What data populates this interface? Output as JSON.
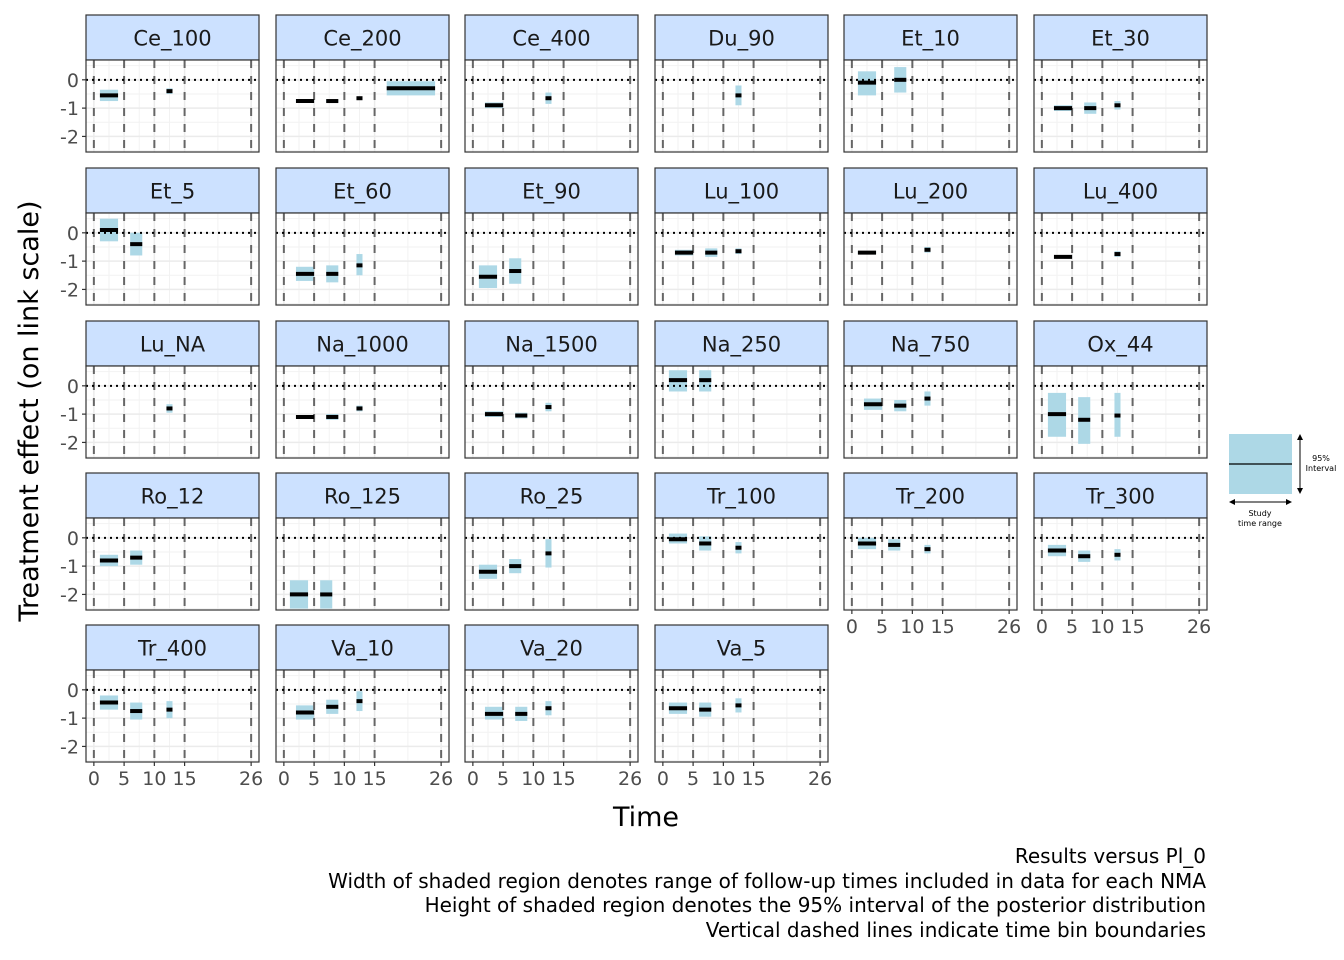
{
  "chart_data": {
    "type": "faceted-interval",
    "xlabel": "Time",
    "ylabel": "Treatment effect (on link scale)",
    "x_ticks": [
      0,
      5,
      10,
      15,
      26
    ],
    "x_tick_labels": [
      "0",
      "5",
      "10",
      "15",
      "26"
    ],
    "xlim": [
      -1.3,
      27.3
    ],
    "bin_boundaries": [
      0,
      5,
      10,
      15,
      26
    ],
    "y_ticks": [
      0,
      -1,
      -2
    ],
    "y_tick_labels": [
      "0",
      "-1",
      "-2"
    ],
    "ylim": [
      -2.55,
      0.7
    ],
    "reference_line": 0,
    "interval_color": "#add8e6",
    "strip_color": "#cce1ff",
    "facets": [
      {
        "label": "Ce_100",
        "estimates": [
          {
            "x0": 1,
            "x1": 4,
            "y": -0.55,
            "lo": -0.75,
            "hi": -0.35
          },
          {
            "x0": 12,
            "x1": 13,
            "y": -0.4,
            "lo": -0.5,
            "hi": -0.3
          }
        ]
      },
      {
        "label": "Ce_200",
        "estimates": [
          {
            "x0": 2,
            "x1": 5,
            "y": -0.75,
            "lo": -0.8,
            "hi": -0.7
          },
          {
            "x0": 7,
            "x1": 9,
            "y": -0.75,
            "lo": -0.8,
            "hi": -0.7
          },
          {
            "x0": 12,
            "x1": 13,
            "y": -0.65,
            "lo": -0.7,
            "hi": -0.6
          },
          {
            "x0": 17,
            "x1": 25,
            "y": -0.3,
            "lo": -0.55,
            "hi": -0.05
          }
        ]
      },
      {
        "label": "Ce_400",
        "estimates": [
          {
            "x0": 2,
            "x1": 5,
            "y": -0.9,
            "lo": -1.0,
            "hi": -0.8
          },
          {
            "x0": 12,
            "x1": 13,
            "y": -0.65,
            "lo": -0.85,
            "hi": -0.45
          }
        ]
      },
      {
        "label": "Du_90",
        "estimates": [
          {
            "x0": 12,
            "x1": 13,
            "y": -0.55,
            "lo": -0.9,
            "hi": -0.2
          }
        ]
      },
      {
        "label": "Et_10",
        "estimates": [
          {
            "x0": 1,
            "x1": 4,
            "y": -0.1,
            "lo": -0.55,
            "hi": 0.3
          },
          {
            "x0": 7,
            "x1": 9,
            "y": 0.0,
            "lo": -0.45,
            "hi": 0.45
          }
        ]
      },
      {
        "label": "Et_30",
        "estimates": [
          {
            "x0": 2,
            "x1": 5,
            "y": -1.0,
            "lo": -1.1,
            "hi": -0.9
          },
          {
            "x0": 7,
            "x1": 9,
            "y": -1.0,
            "lo": -1.2,
            "hi": -0.8
          },
          {
            "x0": 12,
            "x1": 13,
            "y": -0.9,
            "lo": -1.05,
            "hi": -0.75
          }
        ]
      },
      {
        "label": "Et_5",
        "estimates": [
          {
            "x0": 1,
            "x1": 4,
            "y": 0.1,
            "lo": -0.3,
            "hi": 0.5
          },
          {
            "x0": 6,
            "x1": 8,
            "y": -0.4,
            "lo": -0.8,
            "hi": 0.0
          }
        ]
      },
      {
        "label": "Et_60",
        "estimates": [
          {
            "x0": 2,
            "x1": 5,
            "y": -1.45,
            "lo": -1.7,
            "hi": -1.2
          },
          {
            "x0": 7,
            "x1": 9,
            "y": -1.45,
            "lo": -1.75,
            "hi": -1.15
          },
          {
            "x0": 12,
            "x1": 13,
            "y": -1.15,
            "lo": -1.5,
            "hi": -0.75
          }
        ]
      },
      {
        "label": "Et_90",
        "estimates": [
          {
            "x0": 1,
            "x1": 4,
            "y": -1.55,
            "lo": -1.95,
            "hi": -1.15
          },
          {
            "x0": 6,
            "x1": 8,
            "y": -1.35,
            "lo": -1.8,
            "hi": -0.9
          }
        ]
      },
      {
        "label": "Lu_100",
        "estimates": [
          {
            "x0": 2,
            "x1": 5,
            "y": -0.7,
            "lo": -0.8,
            "hi": -0.6
          },
          {
            "x0": 7,
            "x1": 9,
            "y": -0.7,
            "lo": -0.85,
            "hi": -0.55
          },
          {
            "x0": 12,
            "x1": 13,
            "y": -0.65,
            "lo": -0.75,
            "hi": -0.55
          }
        ]
      },
      {
        "label": "Lu_200",
        "estimates": [
          {
            "x0": 1,
            "x1": 4,
            "y": -0.7,
            "lo": -0.75,
            "hi": -0.65
          },
          {
            "x0": 12,
            "x1": 13,
            "y": -0.6,
            "lo": -0.7,
            "hi": -0.5
          }
        ]
      },
      {
        "label": "Lu_400",
        "estimates": [
          {
            "x0": 2,
            "x1": 5,
            "y": -0.85,
            "lo": -0.9,
            "hi": -0.8
          },
          {
            "x0": 12,
            "x1": 13,
            "y": -0.75,
            "lo": -0.85,
            "hi": -0.65
          }
        ]
      },
      {
        "label": "Lu_NA",
        "estimates": [
          {
            "x0": 12,
            "x1": 13,
            "y": -0.8,
            "lo": -0.95,
            "hi": -0.65
          }
        ]
      },
      {
        "label": "Na_1000",
        "estimates": [
          {
            "x0": 2,
            "x1": 5,
            "y": -1.1,
            "lo": -1.15,
            "hi": -1.05
          },
          {
            "x0": 7,
            "x1": 9,
            "y": -1.1,
            "lo": -1.2,
            "hi": -1.0
          },
          {
            "x0": 12,
            "x1": 13,
            "y": -0.8,
            "lo": -0.9,
            "hi": -0.7
          }
        ]
      },
      {
        "label": "Na_1500",
        "estimates": [
          {
            "x0": 2,
            "x1": 5,
            "y": -1.0,
            "lo": -1.1,
            "hi": -0.9
          },
          {
            "x0": 7,
            "x1": 9,
            "y": -1.05,
            "lo": -1.15,
            "hi": -0.95
          },
          {
            "x0": 12,
            "x1": 13,
            "y": -0.75,
            "lo": -0.9,
            "hi": -0.6
          }
        ]
      },
      {
        "label": "Na_250",
        "estimates": [
          {
            "x0": 1,
            "x1": 4,
            "y": 0.2,
            "lo": -0.2,
            "hi": 0.55
          },
          {
            "x0": 6,
            "x1": 8,
            "y": 0.2,
            "lo": -0.2,
            "hi": 0.55
          }
        ]
      },
      {
        "label": "Na_750",
        "estimates": [
          {
            "x0": 2,
            "x1": 5,
            "y": -0.65,
            "lo": -0.85,
            "hi": -0.45
          },
          {
            "x0": 7,
            "x1": 9,
            "y": -0.7,
            "lo": -0.9,
            "hi": -0.5
          },
          {
            "x0": 12,
            "x1": 13,
            "y": -0.45,
            "lo": -0.7,
            "hi": -0.2
          }
        ]
      },
      {
        "label": "Ox_44",
        "estimates": [
          {
            "x0": 1,
            "x1": 4,
            "y": -1.0,
            "lo": -1.8,
            "hi": -0.25
          },
          {
            "x0": 6,
            "x1": 8,
            "y": -1.2,
            "lo": -2.05,
            "hi": -0.4
          },
          {
            "x0": 12,
            "x1": 13,
            "y": -1.05,
            "lo": -1.8,
            "hi": -0.25
          }
        ]
      },
      {
        "label": "Ro_12",
        "estimates": [
          {
            "x0": 1,
            "x1": 4,
            "y": -0.8,
            "lo": -1.0,
            "hi": -0.6
          },
          {
            "x0": 6,
            "x1": 8,
            "y": -0.7,
            "lo": -0.95,
            "hi": -0.45
          }
        ]
      },
      {
        "label": "Ro_125",
        "estimates": [
          {
            "x0": 1,
            "x1": 4,
            "y": -2.0,
            "lo": -2.5,
            "hi": -1.5
          },
          {
            "x0": 6,
            "x1": 8,
            "y": -2.0,
            "lo": -2.5,
            "hi": -1.5
          }
        ]
      },
      {
        "label": "Ro_25",
        "estimates": [
          {
            "x0": 1,
            "x1": 4,
            "y": -1.2,
            "lo": -1.45,
            "hi": -0.95
          },
          {
            "x0": 6,
            "x1": 8,
            "y": -1.0,
            "lo": -1.25,
            "hi": -0.75
          },
          {
            "x0": 12,
            "x1": 13,
            "y": -0.55,
            "lo": -1.05,
            "hi": -0.05
          }
        ]
      },
      {
        "label": "Tr_100",
        "estimates": [
          {
            "x0": 1,
            "x1": 4,
            "y": -0.05,
            "lo": -0.2,
            "hi": 0.15
          },
          {
            "x0": 6,
            "x1": 8,
            "y": -0.2,
            "lo": -0.45,
            "hi": 0.05
          },
          {
            "x0": 12,
            "x1": 13,
            "y": -0.35,
            "lo": -0.55,
            "hi": -0.15
          }
        ]
      },
      {
        "label": "Tr_200",
        "estimates": [
          {
            "x0": 1,
            "x1": 4,
            "y": -0.2,
            "lo": -0.4,
            "hi": 0.0
          },
          {
            "x0": 6,
            "x1": 8,
            "y": -0.25,
            "lo": -0.45,
            "hi": -0.05
          },
          {
            "x0": 12,
            "x1": 13,
            "y": -0.4,
            "lo": -0.55,
            "hi": -0.25
          }
        ]
      },
      {
        "label": "Tr_300",
        "estimates": [
          {
            "x0": 1,
            "x1": 4,
            "y": -0.45,
            "lo": -0.65,
            "hi": -0.25
          },
          {
            "x0": 6,
            "x1": 8,
            "y": -0.65,
            "lo": -0.85,
            "hi": -0.45
          },
          {
            "x0": 12,
            "x1": 13,
            "y": -0.6,
            "lo": -0.8,
            "hi": -0.4
          }
        ]
      },
      {
        "label": "Tr_400",
        "estimates": [
          {
            "x0": 1,
            "x1": 4,
            "y": -0.45,
            "lo": -0.7,
            "hi": -0.2
          },
          {
            "x0": 6,
            "x1": 8,
            "y": -0.75,
            "lo": -1.05,
            "hi": -0.45
          },
          {
            "x0": 12,
            "x1": 13,
            "y": -0.7,
            "lo": -1.0,
            "hi": -0.4
          }
        ]
      },
      {
        "label": "Va_10",
        "estimates": [
          {
            "x0": 2,
            "x1": 5,
            "y": -0.8,
            "lo": -1.05,
            "hi": -0.55
          },
          {
            "x0": 7,
            "x1": 9,
            "y": -0.6,
            "lo": -0.85,
            "hi": -0.35
          },
          {
            "x0": 12,
            "x1": 13,
            "y": -0.4,
            "lo": -0.75,
            "hi": -0.05
          }
        ]
      },
      {
        "label": "Va_20",
        "estimates": [
          {
            "x0": 2,
            "x1": 5,
            "y": -0.85,
            "lo": -1.05,
            "hi": -0.6
          },
          {
            "x0": 7,
            "x1": 9,
            "y": -0.85,
            "lo": -1.1,
            "hi": -0.6
          },
          {
            "x0": 12,
            "x1": 13,
            "y": -0.65,
            "lo": -0.9,
            "hi": -0.4
          }
        ]
      },
      {
        "label": "Va_5",
        "estimates": [
          {
            "x0": 1,
            "x1": 4,
            "y": -0.65,
            "lo": -0.85,
            "hi": -0.45
          },
          {
            "x0": 6,
            "x1": 8,
            "y": -0.7,
            "lo": -0.95,
            "hi": -0.45
          },
          {
            "x0": 12,
            "x1": 13,
            "y": -0.55,
            "lo": -0.8,
            "hi": -0.3
          }
        ]
      }
    ],
    "legend": {
      "interval_label": "95% Interval",
      "time_label": "Study time range"
    },
    "caption": [
      "Results versus Pl_0",
      "Width of shaded region denotes range of follow-up times included in data for each NMA",
      "Height of shaded region denotes the 95% interval of the posterior distribution",
      "Vertical dashed lines indicate time bin boundaries"
    ]
  }
}
